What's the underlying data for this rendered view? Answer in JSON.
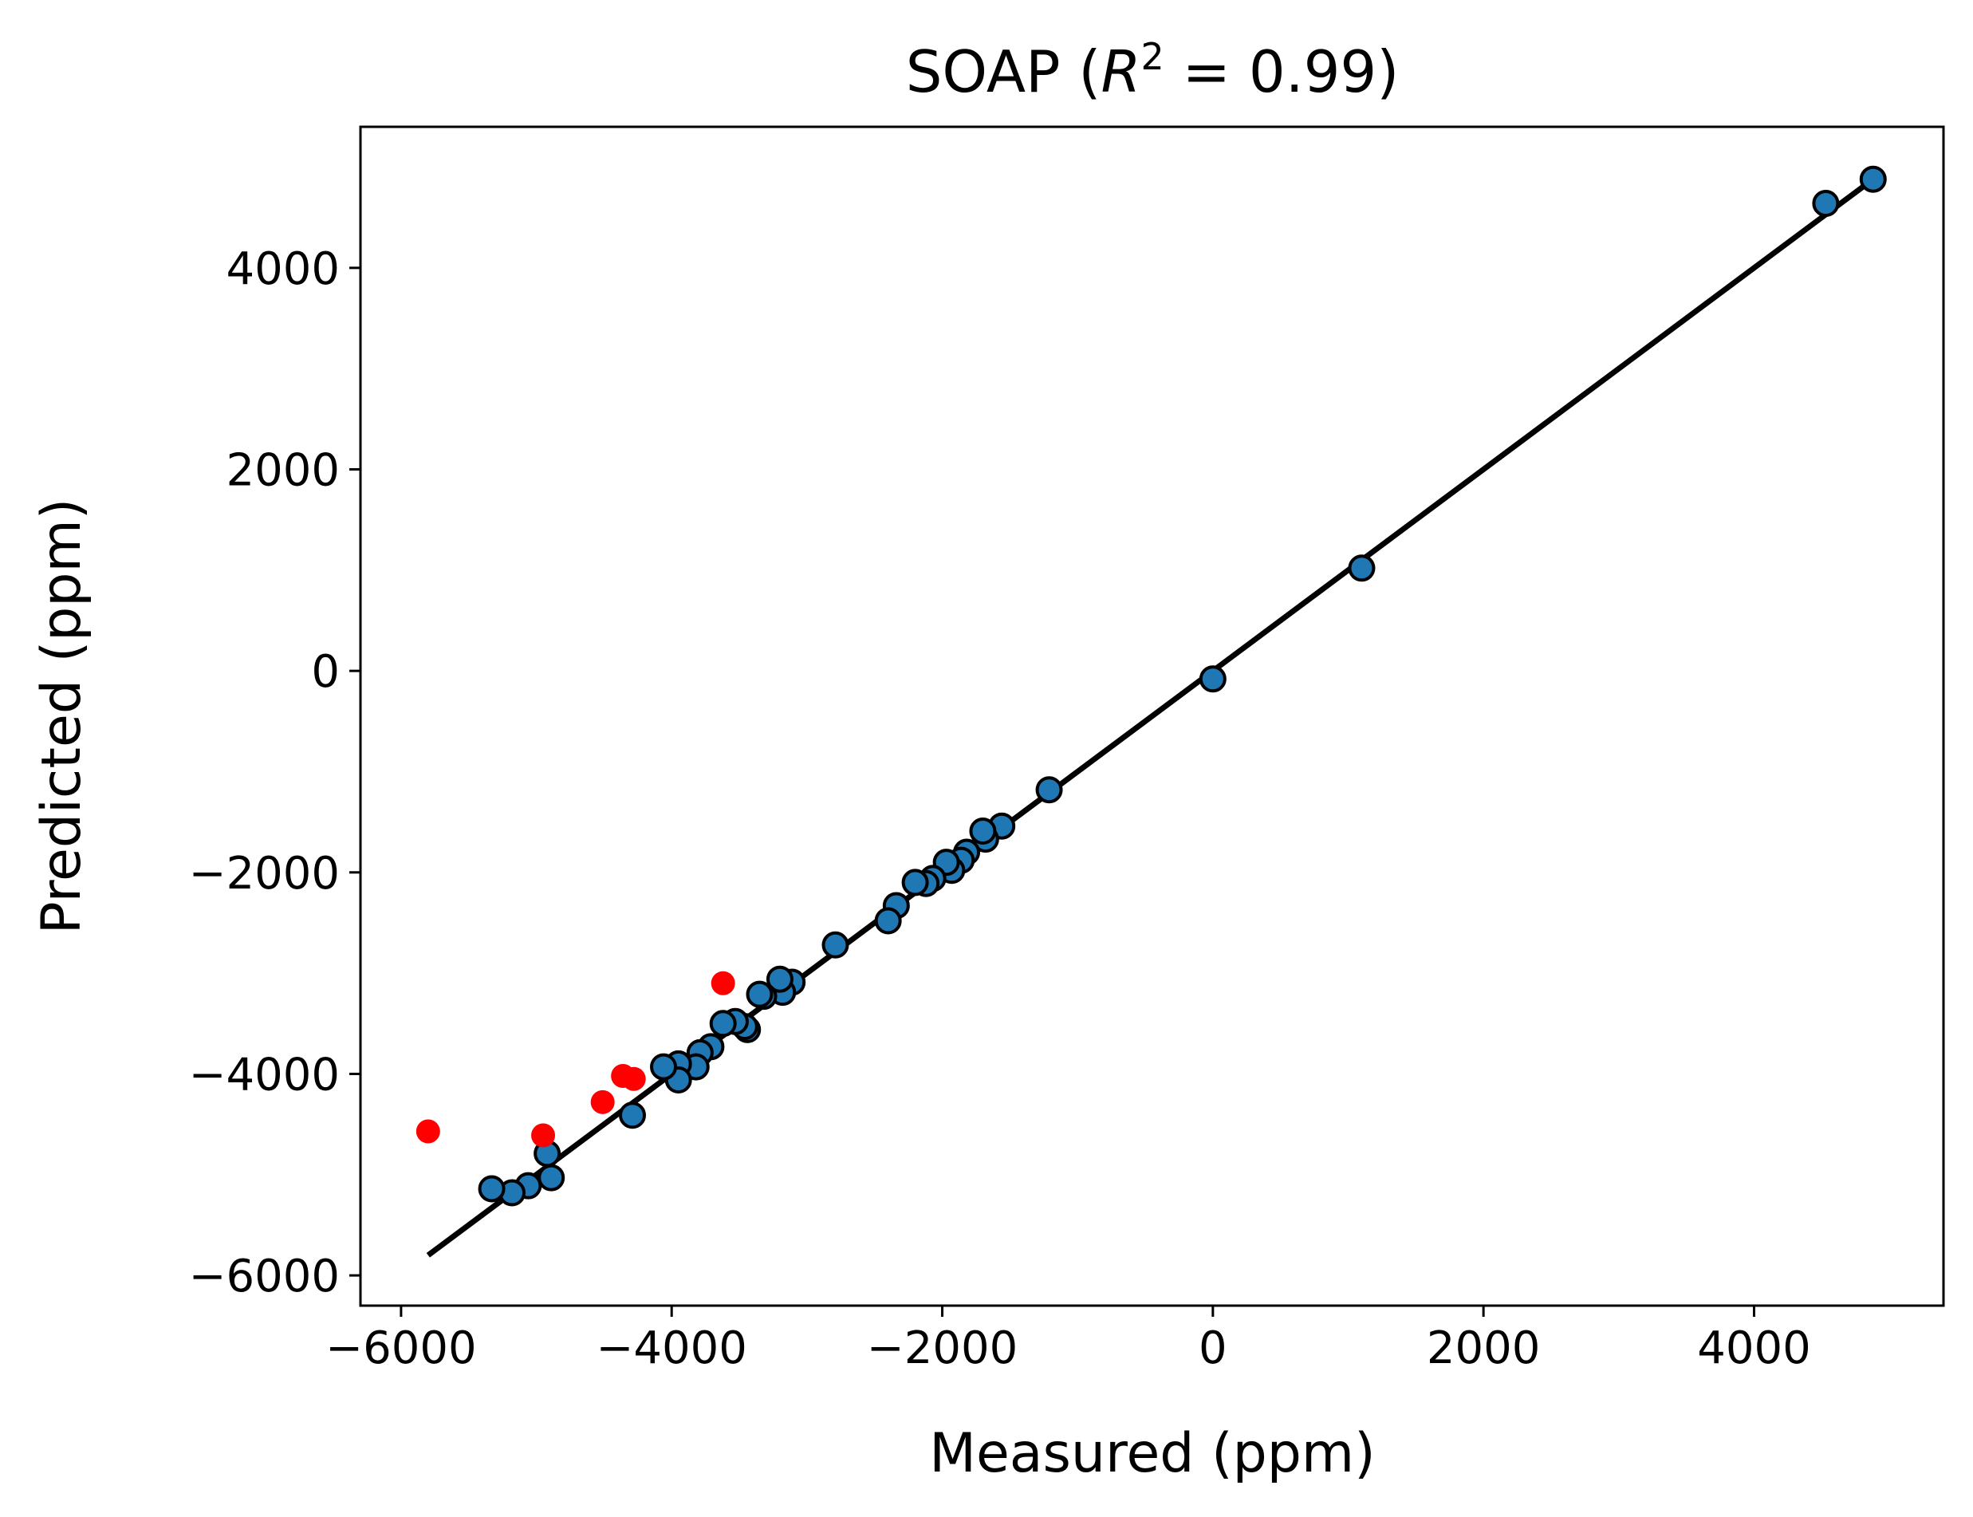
{
  "chart_data": {
    "type": "scatter",
    "title_parts": {
      "prefix": "SOAP (",
      "var": "R",
      "exp": "2",
      "suffix": " = 0.99)"
    },
    "xlabel": "Measured (ppm)",
    "ylabel": "Predicted (ppm)",
    "xlim": [
      -6300,
      5400
    ],
    "ylim": [
      -6300,
      5400
    ],
    "xticks": [
      -6000,
      -4000,
      -2000,
      0,
      2000,
      4000
    ],
    "yticks": [
      -6000,
      -4000,
      -2000,
      0,
      2000,
      4000
    ],
    "xtick_labels": [
      "−6000",
      "−4000",
      "−2000",
      "0",
      "2000",
      "4000"
    ],
    "ytick_labels": [
      "−6000",
      "−4000",
      "−2000",
      "0",
      "2000",
      "4000"
    ],
    "grid": false,
    "fit_line": {
      "x": [
        -5800,
        4900
      ],
      "y": [
        -5800,
        4900
      ],
      "color": "#000000"
    },
    "series": [
      {
        "color": "#1f77b4",
        "edgecolor": "#000000",
        "points": [
          [
            4880,
            4880
          ],
          [
            4530,
            4640
          ],
          [
            1100,
            1020
          ],
          [
            0,
            -80
          ],
          [
            -1210,
            -1180
          ],
          [
            -1560,
            -1540
          ],
          [
            -1680,
            -1670
          ],
          [
            -1700,
            -1590
          ],
          [
            -1820,
            -1800
          ],
          [
            -1860,
            -1880
          ],
          [
            -1930,
            -1980
          ],
          [
            -1970,
            -1900
          ],
          [
            -2070,
            -2060
          ],
          [
            -2120,
            -2110
          ],
          [
            -2200,
            -2100
          ],
          [
            -2340,
            -2330
          ],
          [
            -2400,
            -2480
          ],
          [
            -2790,
            -2720
          ],
          [
            -3110,
            -3090
          ],
          [
            -3180,
            -3190
          ],
          [
            -3200,
            -3060
          ],
          [
            -3320,
            -3230
          ],
          [
            -3350,
            -3210
          ],
          [
            -3440,
            -3560
          ],
          [
            -3460,
            -3530
          ],
          [
            -3530,
            -3480
          ],
          [
            -3620,
            -3500
          ],
          [
            -3710,
            -3730
          ],
          [
            -3790,
            -3790
          ],
          [
            -3820,
            -3930
          ],
          [
            -3950,
            -3900
          ],
          [
            -3950,
            -4060
          ],
          [
            -4060,
            -3930
          ],
          [
            -4290,
            -4410
          ],
          [
            -4920,
            -4790
          ],
          [
            -4890,
            -5030
          ],
          [
            -5060,
            -5110
          ],
          [
            -5180,
            -5180
          ],
          [
            -5330,
            -5140
          ]
        ]
      },
      {
        "color": "#ff0000",
        "edgecolor": "none",
        "points": [
          [
            -5800,
            -4570
          ],
          [
            -4950,
            -4610
          ],
          [
            -4510,
            -4280
          ],
          [
            -4360,
            -4020
          ],
          [
            -4280,
            -4050
          ],
          [
            -3620,
            -3100
          ]
        ]
      }
    ]
  }
}
